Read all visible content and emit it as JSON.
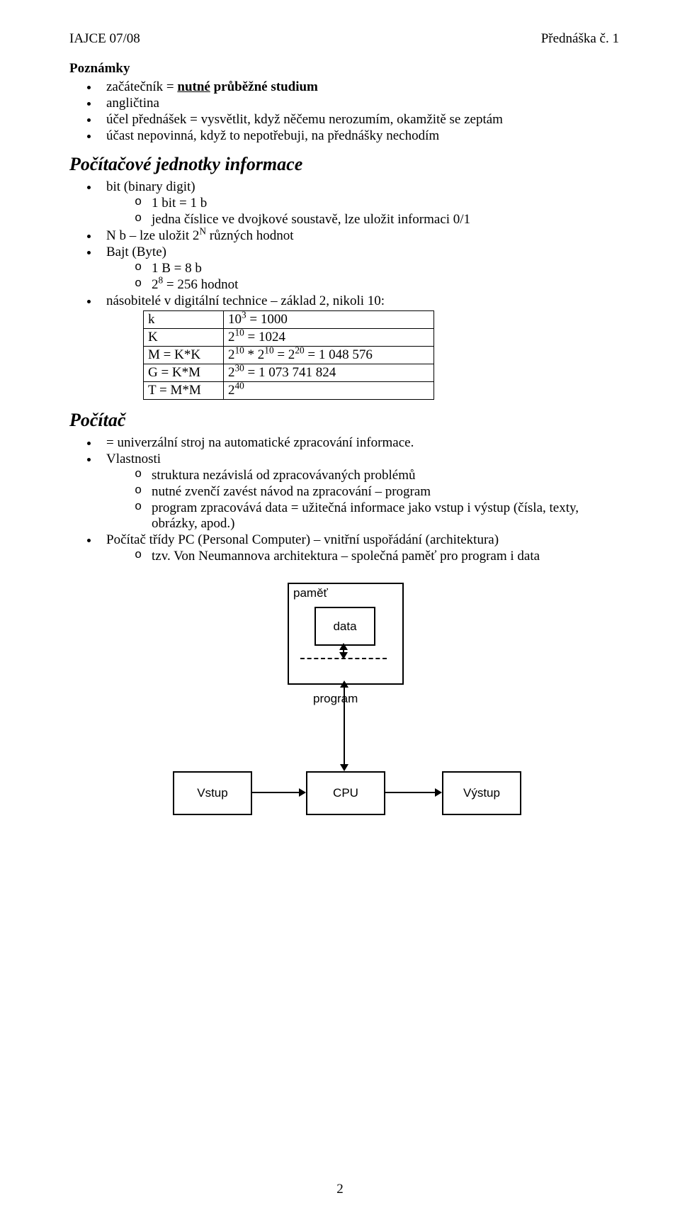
{
  "header_left": "IAJCE 07/08",
  "header_right": "Přednáška č. 1",
  "poznamky_title": "Poznámky",
  "poznamky_items": [
    "začátečník = <b><span class=\"underline\">nutné</span> průběžné studium</b>",
    "angličtina",
    "účel přednášek = vysvětlit, když něčemu nerozumím, okamžitě se zeptám",
    "účast nepovinná, když to nepotřebuji, na přednášky nechodím"
  ],
  "jednotky_title": "Počítačové jednotky informace",
  "jednotky": {
    "bit_label": "bit (binary digit)",
    "bit_sub": [
      "1 bit = 1 b",
      "jedna číslice ve dvojkové soustavě, lze uložit informaci 0/1"
    ],
    "nb": "N b – lze uložit 2<sup>N</sup> různých hodnot",
    "byte_label": "Bajt (Byte)",
    "byte_sub": [
      "1 B = 8 b",
      "2<sup>8</sup> = 256 hodnot"
    ],
    "nasobitele": "násobitelé v digitální technice – základ 2, nikoli 10:",
    "table_rows": [
      [
        "k",
        "10<sup>3</sup> = 1000"
      ],
      [
        "K",
        "2<sup>10</sup> = 1024"
      ],
      [
        "M = K*K",
        "2<sup>10</sup> * 2<sup>10</sup> = 2<sup>20</sup> = 1 048 576"
      ],
      [
        "G = K*M",
        "2<sup>30</sup> = 1 073 741 824"
      ],
      [
        "T = M*M",
        "2<sup>40</sup>"
      ]
    ]
  },
  "pocitac_title": "Počítač",
  "pocitac": {
    "univerzal": "= univerzální stroj na automatické zpracování informace.",
    "vlast_label": "Vlastnosti",
    "vlast_sub": [
      "struktura nezávislá od zpracovávaných problémů",
      "nutné zvenčí zavést návod na zpracování – program",
      "program zpracovává data = užitečná informace jako vstup i výstup (čísla, texty, obrázky, apod.)"
    ],
    "pc_line": "Počítač třídy PC (Personal Computer) – vnitřní uspořádání (architektura)",
    "pc_sub": [
      "tzv. Von Neumannova architektura – společná paměť pro program i data"
    ]
  },
  "diagram": {
    "pamet": "paměť",
    "data": "data",
    "program": "program",
    "vstup": "Vstup",
    "cpu": "CPU",
    "vystup": "Výstup"
  },
  "page_number": "2"
}
